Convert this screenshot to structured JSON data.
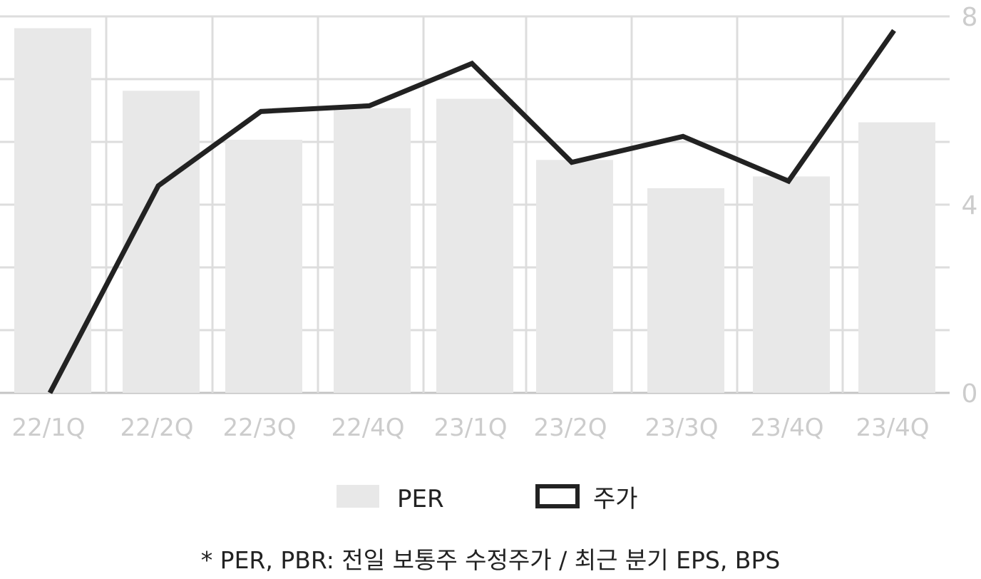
{
  "chart_data": {
    "type": "bar+line",
    "categories": [
      "22/1Q",
      "22/2Q",
      "22/3Q",
      "22/4Q",
      "23/1Q",
      "23/2Q",
      "23/3Q",
      "23/4Q",
      "23/4Q"
    ],
    "series": [
      {
        "name": "PER",
        "type": "bar",
        "color": "#e8e8e8",
        "values": [
          7.75,
          6.42,
          5.38,
          6.05,
          6.25,
          4.95,
          4.35,
          4.6,
          5.75
        ]
      },
      {
        "name": "주가",
        "type": "line",
        "color": "#222222",
        "values": [
          0.0,
          4.4,
          5.98,
          6.1,
          7.0,
          4.9,
          5.45,
          4.5,
          7.7
        ]
      }
    ],
    "y_axis": {
      "position": "right",
      "ylim": [
        0,
        8
      ],
      "gridlines": [
        0,
        1.333,
        2.667,
        4,
        5.333,
        6.667,
        8
      ],
      "tick_labels": [
        "0",
        "4",
        "8"
      ],
      "tick_values": [
        0,
        4,
        8
      ]
    },
    "grid": true,
    "legend": {
      "placement": "bottom",
      "items": [
        "PER",
        "주가"
      ]
    },
    "footnote": "* PER, PBR: 전일 보통주 수정주가 / 최근 분기 EPS, BPS"
  }
}
